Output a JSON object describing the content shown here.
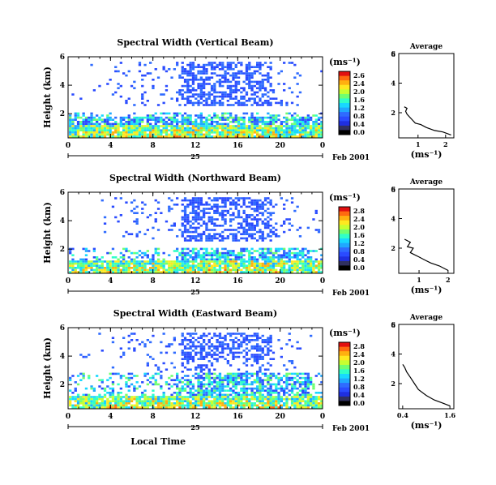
{
  "chart_data": {
    "type": "heatmap",
    "date_label": "Feb 2001",
    "day_label": "25",
    "xlabel": "Local Time",
    "ylabel": "Height (km)",
    "x_ticks": [
      "0",
      "4",
      "8",
      "12",
      "16",
      "20",
      "0"
    ],
    "y_ticks": [
      "2",
      "4",
      "6"
    ],
    "unit_label": "(ms⁻¹)",
    "profile_title": "Average",
    "panels": [
      {
        "title": "Spectral Width (Vertical Beam)",
        "colorbar_ticks": [
          "2.6",
          "2.4",
          "2.0",
          "1.6",
          "1.2",
          "0.8",
          "0.4",
          "0.0"
        ],
        "profile_xticks": [
          "1",
          "2"
        ],
        "profile_xlim": [
          0.3,
          2.3
        ],
        "profile": [
          [
            2.2,
            0.5
          ],
          [
            1.9,
            0.7
          ],
          [
            1.6,
            0.8
          ],
          [
            1.3,
            1.0
          ],
          [
            1.1,
            1.2
          ],
          [
            0.9,
            1.3
          ],
          [
            0.8,
            1.5
          ],
          [
            0.7,
            1.7
          ],
          [
            0.6,
            1.9
          ],
          [
            0.55,
            2.1
          ],
          [
            0.6,
            2.3
          ],
          [
            0.5,
            2.4
          ]
        ]
      },
      {
        "title": "Spectral Width (Northward Beam)",
        "colorbar_ticks": [
          "2.8",
          "2.4",
          "2.0",
          "1.6",
          "1.2",
          "0.8",
          "0.4",
          "0.0"
        ],
        "profile_xticks": [
          "1",
          "2"
        ],
        "profile_xlim": [
          0.3,
          2.2
        ],
        "profile": [
          [
            2.0,
            0.5
          ],
          [
            1.7,
            0.8
          ],
          [
            1.4,
            1.0
          ],
          [
            1.2,
            1.2
          ],
          [
            1.0,
            1.4
          ],
          [
            0.8,
            1.6
          ],
          [
            0.7,
            1.7
          ],
          [
            0.8,
            2.0
          ],
          [
            0.6,
            2.1
          ],
          [
            0.7,
            2.4
          ],
          [
            0.5,
            2.6
          ]
        ]
      },
      {
        "title": "Spectral Width (Eastward Beam)",
        "colorbar_ticks": [
          "2.8",
          "2.4",
          "2.0",
          "1.6",
          "1.2",
          "0.8",
          "0.4",
          "0.0"
        ],
        "profile_xticks": [
          "0.4",
          "1.6"
        ],
        "profile_xlim": [
          0.3,
          1.7
        ],
        "profile": [
          [
            1.6,
            0.5
          ],
          [
            1.4,
            0.7
          ],
          [
            1.2,
            0.9
          ],
          [
            1.0,
            1.2
          ],
          [
            0.8,
            1.6
          ],
          [
            0.7,
            2.0
          ],
          [
            0.6,
            2.4
          ],
          [
            0.5,
            2.8
          ],
          [
            0.45,
            3.1
          ],
          [
            0.4,
            3.3
          ]
        ]
      }
    ],
    "xlim": [
      0,
      24
    ],
    "ylim": [
      0.3,
      6
    ],
    "profile_ylim": [
      0.3,
      6
    ],
    "colorbar_colors": [
      "#000000",
      "#3050ff",
      "#4080ff",
      "#20c0ff",
      "#20e0c0",
      "#60ff80",
      "#c0ff40",
      "#ffe020",
      "#ff8010",
      "#e01010"
    ],
    "colors": {
      "low": "#2a4bff",
      "mid1": "#18c0ff",
      "mid2": "#3cffa0",
      "mid3": "#fff020",
      "high": "#ff6a10",
      "max": "#e21010"
    }
  }
}
